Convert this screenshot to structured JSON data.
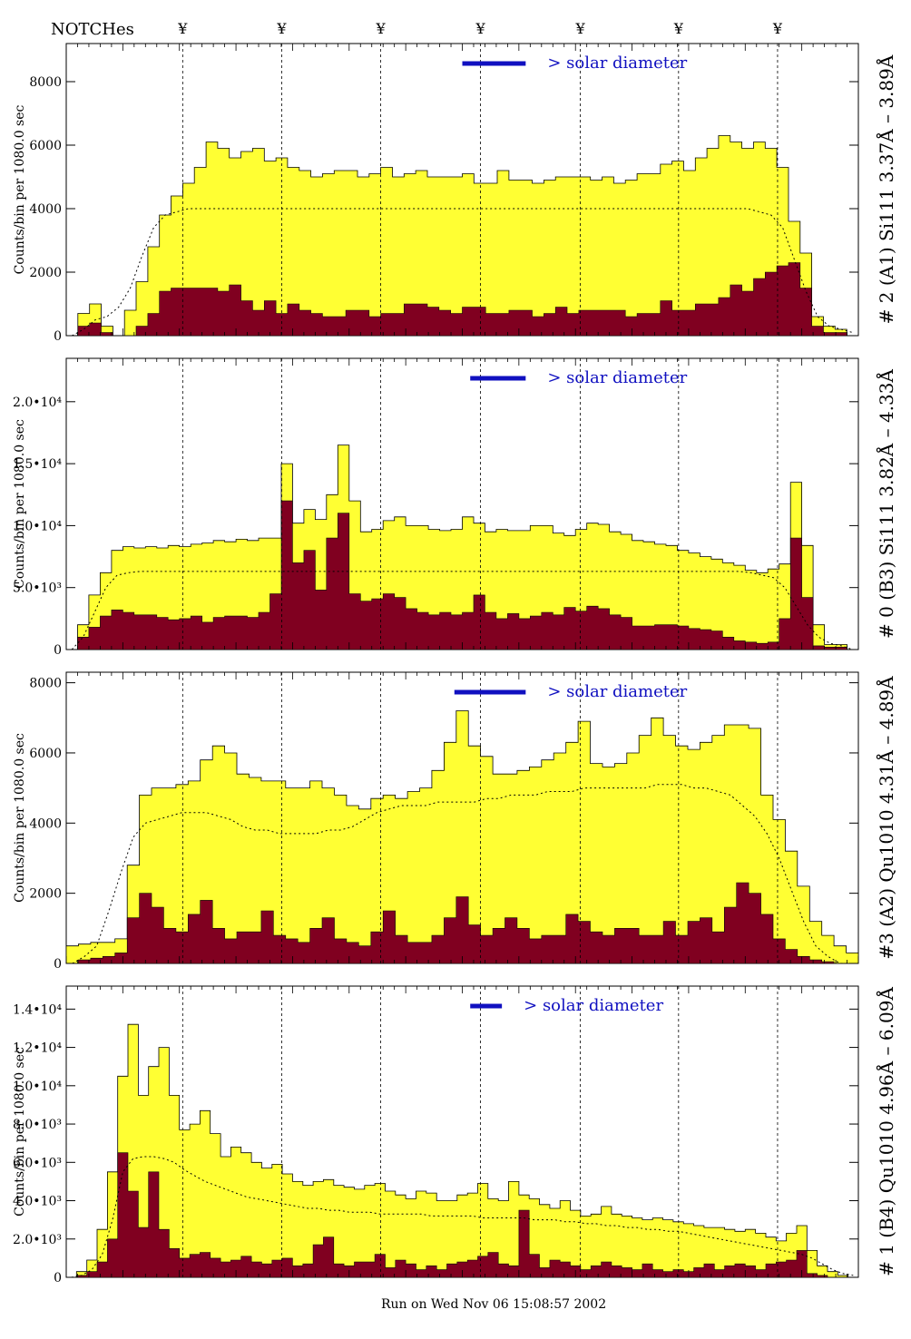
{
  "notches": {
    "label": "NOTCHes",
    "symbol": "¥",
    "positions": [
      0.147,
      0.272,
      0.397,
      0.523,
      0.649,
      0.773,
      0.898
    ]
  },
  "footer": {
    "run_text": "Run on Wed Nov 06 15:08:57 2002"
  },
  "colors": {
    "total_fill": "#ffff33",
    "sub_fill": "#800020",
    "solar_bar": "#1010c0",
    "outline": "#000000"
  },
  "chart_data": [
    {
      "type": "area",
      "side_label": "# 2 (A1) Si111  3.37Å – 3.89Å",
      "ylabel": "Counts/bin per   1080.0 sec",
      "solar_label": "> solar diameter",
      "yticks": [
        "0",
        "2000",
        "4000",
        "6000",
        "8000"
      ],
      "ytick_values": [
        0,
        2000,
        4000,
        6000,
        8000
      ],
      "ylim": [
        0,
        9200
      ],
      "solar_bar": [
        0.5,
        0.58
      ],
      "total": [
        0,
        700,
        1000,
        300,
        0,
        800,
        1700,
        2800,
        3800,
        4400,
        4800,
        5300,
        6100,
        5900,
        5600,
        5800,
        5900,
        5500,
        5600,
        5300,
        5200,
        5000,
        5100,
        5200,
        5200,
        5000,
        5100,
        5300,
        5000,
        5100,
        5200,
        5000,
        5000,
        5000,
        5100,
        4800,
        4800,
        5200,
        4900,
        4900,
        4800,
        4900,
        5000,
        5000,
        5000,
        4900,
        5000,
        4800,
        4900,
        5100,
        5100,
        5400,
        5500,
        5200,
        5600,
        5900,
        6300,
        6100,
        5900,
        6100,
        5900,
        5300,
        3600,
        2600,
        600,
        300,
        200,
        0
      ],
      "sub": [
        0,
        300,
        400,
        100,
        0,
        0,
        300,
        700,
        1400,
        1500,
        1500,
        1500,
        1500,
        1400,
        1600,
        1100,
        800,
        1100,
        700,
        1000,
        800,
        700,
        600,
        600,
        800,
        800,
        600,
        700,
        700,
        1000,
        1000,
        900,
        800,
        700,
        900,
        900,
        700,
        700,
        800,
        800,
        600,
        700,
        900,
        700,
        800,
        800,
        800,
        800,
        600,
        700,
        700,
        1100,
        800,
        800,
        1000,
        1000,
        1200,
        1600,
        1400,
        1800,
        2000,
        2200,
        2300,
        1500,
        300,
        100,
        100,
        0
      ],
      "model": [
        0,
        200,
        500,
        600,
        900,
        1500,
        2500,
        3400,
        3800,
        3900,
        4000,
        4000,
        4000,
        4000,
        4000,
        4000,
        4000,
        4000,
        4000,
        4000,
        4000,
        4000,
        4000,
        4000,
        4000,
        4000,
        4000,
        4000,
        4000,
        4000,
        4000,
        4000,
        4000,
        4000,
        4000,
        4000,
        4000,
        4000,
        4000,
        4000,
        4000,
        4000,
        4000,
        4000,
        4000,
        4000,
        4000,
        4000,
        4000,
        4000,
        4000,
        4000,
        4000,
        4000,
        4000,
        4000,
        4000,
        4000,
        4000,
        3900,
        3800,
        3400,
        2400,
        1400,
        600,
        300,
        200,
        100
      ]
    },
    {
      "type": "area",
      "side_label": "# 0 (B3) Si111  3.82Å – 4.33Å",
      "ylabel": "Counts/bin per   1080.0 sec",
      "solar_label": "> solar diameter",
      "yticks": [
        "0",
        "5.0•10³",
        "1.0•10⁴",
        "1.5•10⁴",
        "2.0•10⁴"
      ],
      "ytick_values": [
        0,
        5000,
        10000,
        15000,
        20000
      ],
      "ylim": [
        0,
        23500
      ],
      "solar_bar": [
        0.51,
        0.58
      ],
      "total": [
        0,
        2000,
        4400,
        6200,
        8000,
        8300,
        8200,
        8300,
        8200,
        8400,
        8300,
        8500,
        8600,
        8800,
        8700,
        8900,
        8800,
        9000,
        9000,
        15000,
        10200,
        11300,
        10500,
        12500,
        16500,
        12000,
        9500,
        9700,
        10400,
        10700,
        10000,
        10000,
        9700,
        9600,
        9700,
        10700,
        10200,
        9500,
        9700,
        9600,
        9600,
        10000,
        10000,
        9400,
        9200,
        9700,
        10200,
        10100,
        9500,
        9300,
        8800,
        8700,
        8500,
        8400,
        8000,
        7800,
        7500,
        7300,
        7000,
        6800,
        6400,
        6200,
        6500,
        6900,
        13500,
        8400,
        2000,
        400,
        400,
        0
      ],
      "sub": [
        0,
        1000,
        1800,
        2700,
        3200,
        3000,
        2800,
        2800,
        2600,
        2400,
        2500,
        2700,
        2200,
        2600,
        2700,
        2700,
        2600,
        3000,
        4500,
        12000,
        7000,
        8000,
        4800,
        9000,
        11000,
        4500,
        3900,
        4100,
        4500,
        4200,
        3300,
        3000,
        2800,
        3000,
        2800,
        3000,
        4400,
        3000,
        2500,
        2900,
        2500,
        2700,
        3000,
        2800,
        3400,
        3100,
        3500,
        3300,
        2800,
        2600,
        1900,
        1900,
        2000,
        2000,
        1900,
        1700,
        1600,
        1500,
        1000,
        700,
        600,
        500,
        600,
        2500,
        9000,
        4200,
        300,
        200,
        200,
        0
      ],
      "model": [
        0,
        1000,
        3000,
        5000,
        6000,
        6200,
        6300,
        6300,
        6300,
        6300,
        6300,
        6300,
        6300,
        6300,
        6300,
        6300,
        6300,
        6300,
        6300,
        6300,
        6300,
        6300,
        6300,
        6300,
        6300,
        6300,
        6300,
        6300,
        6300,
        6300,
        6300,
        6300,
        6300,
        6300,
        6300,
        6300,
        6300,
        6300,
        6300,
        6300,
        6300,
        6300,
        6300,
        6300,
        6300,
        6300,
        6300,
        6300,
        6300,
        6300,
        6300,
        6300,
        6300,
        6300,
        6300,
        6300,
        6300,
        6300,
        6300,
        6300,
        6200,
        6000,
        5800,
        5000,
        3500,
        2000,
        1000,
        500,
        300,
        0
      ]
    },
    {
      "type": "area",
      "side_label": "#3 (A2) Qu1010  4.31Å – 4.89Å",
      "ylabel": "Counts/bin per   1080.0 sec",
      "solar_label": "> solar diameter",
      "yticks": [
        "0",
        "2000",
        "4000",
        "6000",
        "8000"
      ],
      "ytick_values": [
        0,
        2000,
        4000,
        6000,
        8000
      ],
      "ylim": [
        0,
        8300
      ],
      "solar_bar": [
        0.49,
        0.58
      ],
      "total": [
        500,
        550,
        600,
        600,
        700,
        2800,
        4800,
        5000,
        5000,
        5100,
        5200,
        5800,
        6200,
        6000,
        5400,
        5300,
        5200,
        5200,
        5000,
        5000,
        5200,
        5000,
        4800,
        4500,
        4400,
        4700,
        4800,
        4700,
        4900,
        5000,
        5500,
        6300,
        7200,
        6200,
        5900,
        5400,
        5400,
        5500,
        5600,
        5800,
        6000,
        6300,
        6900,
        5700,
        5600,
        5700,
        6000,
        6500,
        7000,
        6500,
        6200,
        6100,
        6300,
        6500,
        6800,
        6800,
        6700,
        4800,
        4100,
        3200,
        2200,
        1200,
        800,
        500,
        300
      ],
      "sub": [
        0,
        100,
        150,
        200,
        300,
        1300,
        2000,
        1600,
        1000,
        900,
        1400,
        1800,
        1000,
        700,
        900,
        900,
        1500,
        800,
        700,
        600,
        1000,
        1300,
        700,
        600,
        500,
        900,
        1500,
        800,
        600,
        600,
        800,
        1300,
        1900,
        1100,
        800,
        1000,
        1300,
        1000,
        700,
        800,
        800,
        1400,
        1200,
        900,
        800,
        1000,
        1000,
        800,
        800,
        1200,
        800,
        1200,
        1300,
        900,
        1600,
        2300,
        2000,
        1400,
        700,
        400,
        200,
        100,
        50,
        0,
        0
      ],
      "model": [
        0,
        200,
        500,
        1500,
        2600,
        3600,
        4000,
        4100,
        4200,
        4300,
        4300,
        4300,
        4200,
        4100,
        3900,
        3800,
        3800,
        3700,
        3700,
        3700,
        3700,
        3800,
        3800,
        3900,
        4100,
        4300,
        4400,
        4500,
        4500,
        4500,
        4600,
        4600,
        4600,
        4600,
        4700,
        4700,
        4800,
        4800,
        4800,
        4900,
        4900,
        4900,
        5000,
        5000,
        5000,
        5000,
        5000,
        5000,
        5100,
        5100,
        5100,
        5000,
        5000,
        4900,
        4800,
        4500,
        4200,
        3700,
        3000,
        2100,
        1200,
        500,
        200,
        0,
        0
      ]
    },
    {
      "type": "area",
      "side_label": "# 1 (B4) Qu1010 4.96Å – 6.09Å",
      "ylabel": "Counts/bin per   1080.0 sec",
      "solar_label": "> solar diameter",
      "yticks": [
        "0",
        "2.0•10³",
        "4.0•10³",
        "6.0•10³",
        "8.0•10³",
        "1.0•10⁴",
        "1.2•10⁴",
        "1.4•10⁴"
      ],
      "ytick_values": [
        0,
        2000,
        4000,
        6000,
        8000,
        10000,
        12000,
        14000
      ],
      "ylim": [
        0,
        15200
      ],
      "solar_bar": [
        0.51,
        0.55
      ],
      "total": [
        0,
        300,
        900,
        2500,
        5500,
        10500,
        13200,
        9500,
        11000,
        12000,
        9500,
        7700,
        8000,
        8700,
        7500,
        6300,
        6800,
        6500,
        6000,
        5700,
        5900,
        5400,
        5000,
        4800,
        5000,
        5100,
        4800,
        4700,
        4600,
        4800,
        4900,
        4500,
        4300,
        4100,
        4500,
        4400,
        4000,
        4000,
        4300,
        4400,
        4900,
        4100,
        4000,
        5000,
        4300,
        4100,
        3800,
        3600,
        4000,
        3500,
        3200,
        3300,
        3700,
        3300,
        3200,
        3100,
        3000,
        3100,
        3000,
        2900,
        2800,
        2700,
        2600,
        2600,
        2500,
        2400,
        2500,
        2300,
        2100,
        1900,
        2300,
        2700,
        1400,
        600,
        300,
        100,
        0
      ],
      "sub": [
        0,
        100,
        300,
        800,
        2000,
        6500,
        4500,
        2600,
        5500,
        2500,
        1500,
        1000,
        1200,
        1300,
        1000,
        800,
        900,
        1100,
        800,
        700,
        900,
        1000,
        600,
        700,
        1700,
        2100,
        700,
        600,
        800,
        800,
        1200,
        500,
        900,
        700,
        400,
        600,
        400,
        700,
        800,
        900,
        1100,
        1300,
        700,
        600,
        3500,
        1200,
        500,
        900,
        800,
        600,
        400,
        600,
        800,
        600,
        500,
        400,
        700,
        400,
        300,
        400,
        300,
        500,
        700,
        400,
        600,
        700,
        600,
        400,
        700,
        800,
        900,
        1400,
        200,
        100,
        0,
        0,
        0
      ],
      "model": [
        0,
        100,
        400,
        1200,
        3000,
        5500,
        6200,
        6300,
        6300,
        6200,
        6000,
        5600,
        5300,
        5000,
        4800,
        4600,
        4400,
        4200,
        4100,
        4000,
        3900,
        3800,
        3700,
        3600,
        3600,
        3500,
        3500,
        3400,
        3400,
        3400,
        3300,
        3300,
        3300,
        3300,
        3300,
        3200,
        3200,
        3200,
        3200,
        3200,
        3100,
        3100,
        3100,
        3100,
        3100,
        3000,
        3000,
        3000,
        2900,
        2900,
        2800,
        2800,
        2700,
        2700,
        2600,
        2600,
        2500,
        2500,
        2400,
        2400,
        2300,
        2200,
        2100,
        2000,
        1900,
        1800,
        1700,
        1600,
        1500,
        1400,
        1300,
        1200,
        1000,
        700,
        400,
        200,
        100
      ]
    }
  ]
}
